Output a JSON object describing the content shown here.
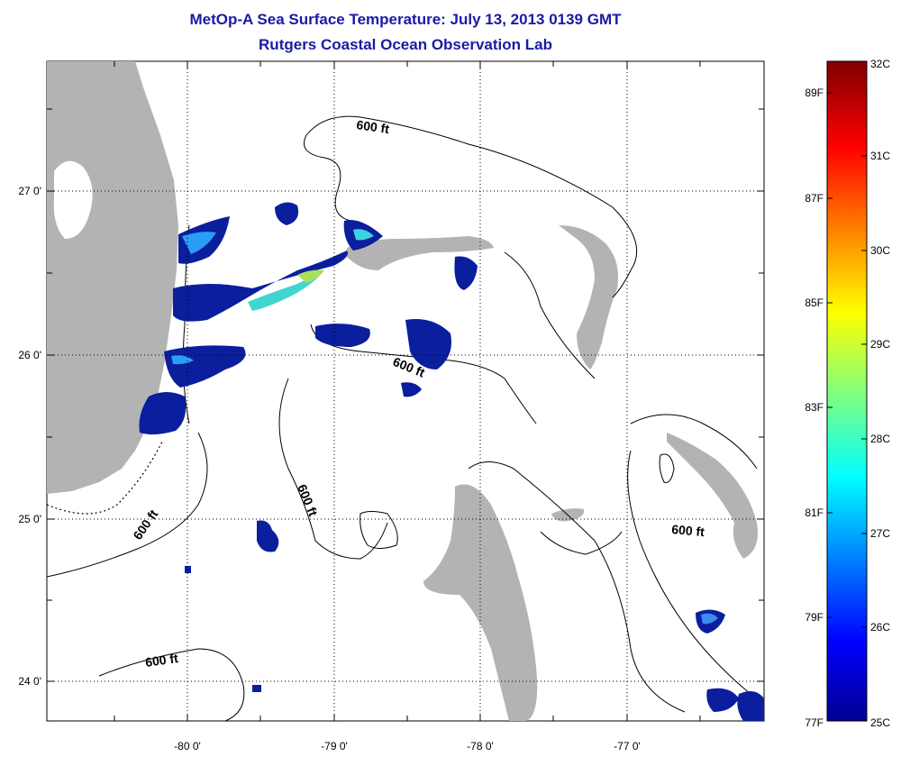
{
  "title": {
    "line1": "MetOp-A Sea Surface Temperature:  July 13, 2013 0139 GMT",
    "line2": "Rutgers Coastal Ocean Observation Lab"
  },
  "map": {
    "lon_ticks": [
      "-80 0'",
      "-79 0'",
      "-78 0'",
      "-77 0'"
    ],
    "lat_ticks": [
      "27 0'",
      "26 0'",
      "25 0'",
      "24 0'"
    ],
    "contour_labels": [
      "600 ft",
      "600 ft",
      "600 ft",
      "600 ft",
      "600 ft",
      "600 ft"
    ],
    "colors": {
      "land": "#b3b3b3",
      "cloud": "#ffffff",
      "grid": "#000000"
    }
  },
  "colorbar": {
    "celsius": [
      "32C",
      "31C",
      "30C",
      "29C",
      "28C",
      "27C",
      "26C",
      "25C"
    ],
    "fahrenheit": [
      "89F",
      "87F",
      "85F",
      "83F",
      "81F",
      "79F",
      "77F"
    ]
  }
}
